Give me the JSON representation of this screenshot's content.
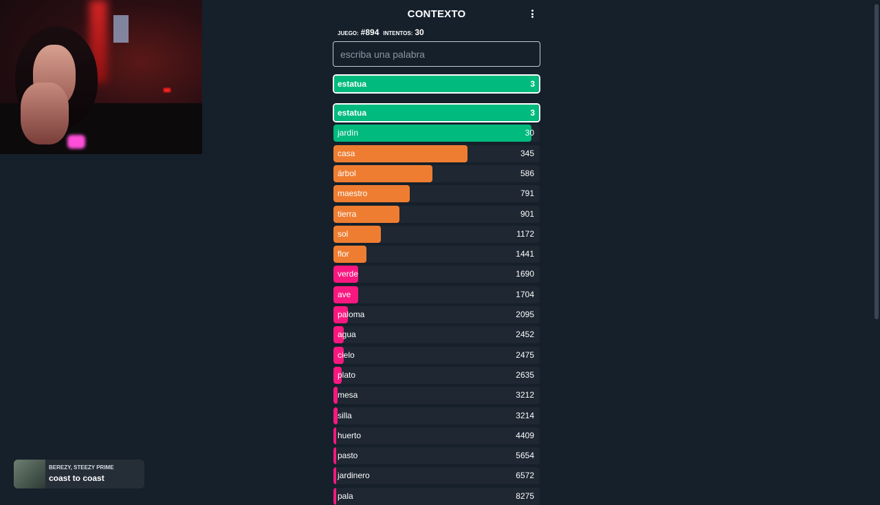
{
  "app": {
    "title": "CONTEXTO",
    "game_label": "JUEGO:",
    "game_number": "#894",
    "attempts_label": "INTENTOS:",
    "attempts_count": "30",
    "input_placeholder": "escriba una palabra"
  },
  "last_guess": {
    "word": "estatua",
    "rank": "3"
  },
  "guesses": [
    {
      "word": "estatua",
      "rank": "3"
    },
    {
      "word": "jardín",
      "rank": "30"
    },
    {
      "word": "casa",
      "rank": "345"
    },
    {
      "word": "árbol",
      "rank": "586"
    },
    {
      "word": "maestro",
      "rank": "791"
    },
    {
      "word": "tierra",
      "rank": "901"
    },
    {
      "word": "sol",
      "rank": "1172"
    },
    {
      "word": "flor",
      "rank": "1441"
    },
    {
      "word": "verde",
      "rank": "1690"
    },
    {
      "word": "ave",
      "rank": "1704"
    },
    {
      "word": "paloma",
      "rank": "2095"
    },
    {
      "word": "agua",
      "rank": "2452"
    },
    {
      "word": "cielo",
      "rank": "2475"
    },
    {
      "word": "plato",
      "rank": "2635"
    },
    {
      "word": "mesa",
      "rank": "3212"
    },
    {
      "word": "silla",
      "rank": "3214"
    },
    {
      "word": "huerto",
      "rank": "4409"
    },
    {
      "word": "pasto",
      "rank": "5654"
    },
    {
      "word": "jardinero",
      "rank": "6572"
    },
    {
      "word": "pala",
      "rank": "8275"
    }
  ],
  "bar_fill_fraction": [
    0.96,
    0.96,
    0.65,
    0.48,
    0.37,
    0.32,
    0.23,
    0.16,
    0.12,
    0.12,
    0.07,
    0.05,
    0.05,
    0.04,
    0.02,
    0.02,
    0.01,
    0.01,
    0.01,
    0.01
  ],
  "colors": {
    "green": "#01ba7d",
    "orange": "#ef7d31",
    "pink": "#f91880",
    "background": "#15202b",
    "row_background": "#1e2732"
  },
  "now_playing": {
    "artist": "BEREZY, STEEZY PRIME",
    "song": "coast to coast"
  }
}
